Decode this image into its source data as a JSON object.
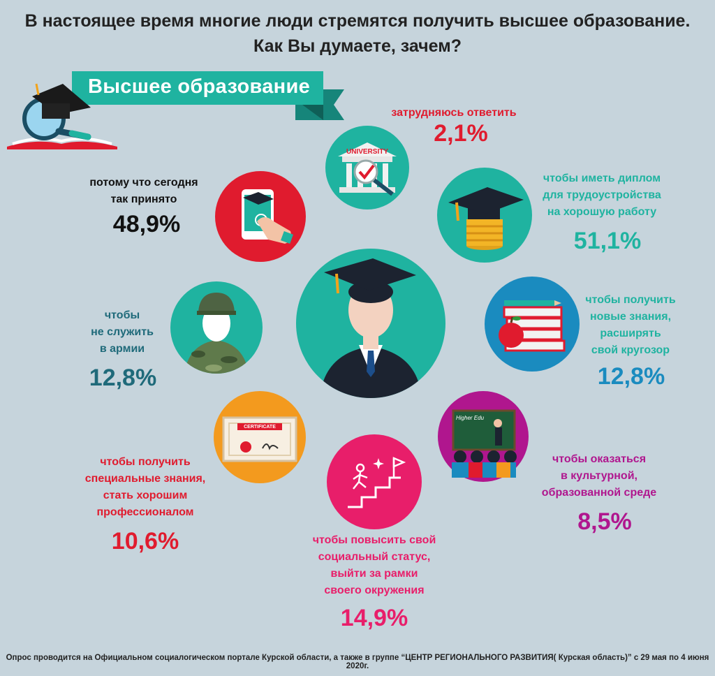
{
  "title_line1": "В настоящее время многие люди стремятся получить высшее образование.",
  "title_line2": "Как Вы думаете, зачем?",
  "ribbon": "Высшее образование",
  "university_sign": "UNIVERSITY",
  "certificate_sign": "CERTIFICATE",
  "board_text": "Higher Edu",
  "footer": "Опрос проводится на Официальном социалогическом портале Курской области, а также в группе “ЦЕНТР РЕГИОНАЛЬНОГО РАЗВИТИЯ( Курская область)” с 29 мая по 4 июня 2020г.",
  "colors": {
    "background": "#c6d4dc",
    "teal": "#1fb3a0",
    "red": "#e01b2e",
    "pink": "#e81e6a",
    "purple": "#b0168e",
    "blue": "#1a8bbf",
    "dark_teal": "#1f6a7a",
    "orange": "#f39a1e"
  },
  "chart_data": {
    "type": "infographic",
    "title": "В настоящее время многие люди стремятся получить высшее образование. Как Вы думаете, зачем?",
    "unit": "%",
    "items": [
      {
        "id": "diploma",
        "line1": "чтобы иметь диплом",
        "line2": "для трудоустройства",
        "line3": "на хорошую работу",
        "value": 51.1,
        "label": "51,1%"
      },
      {
        "id": "accepted",
        "line1": "потому что сегодня",
        "line2": "так принято",
        "value": 48.9,
        "label": "48,9%"
      },
      {
        "id": "status",
        "line1": "чтобы повысить свой",
        "line2": "социальный статус,",
        "line3": "выйти за рамки",
        "line4": "своего окружения",
        "value": 14.9,
        "label": "14,9%"
      },
      {
        "id": "army",
        "line1": "чтобы",
        "line2": "не служить",
        "line3": "в армии",
        "value": 12.8,
        "label": "12,8%"
      },
      {
        "id": "knowledge",
        "line1": "чтобы получить",
        "line2": "новые знания,",
        "line3": "расширять",
        "line4": "свой кругозор",
        "value": 12.8,
        "label": "12,8%"
      },
      {
        "id": "special",
        "line1": "чтобы получить",
        "line2": "специальные знания,",
        "line3": "стать хорошим",
        "line4": "профессионалом",
        "value": 10.6,
        "label": "10,6%"
      },
      {
        "id": "culture",
        "line1": "чтобы оказаться",
        "line2": "в культурной,",
        "line3": "образованной среде",
        "value": 8.5,
        "label": "8,5%"
      },
      {
        "id": "unsure",
        "line1": "затрудняюсь ответить",
        "value": 2.1,
        "label": "2,1%"
      }
    ]
  }
}
